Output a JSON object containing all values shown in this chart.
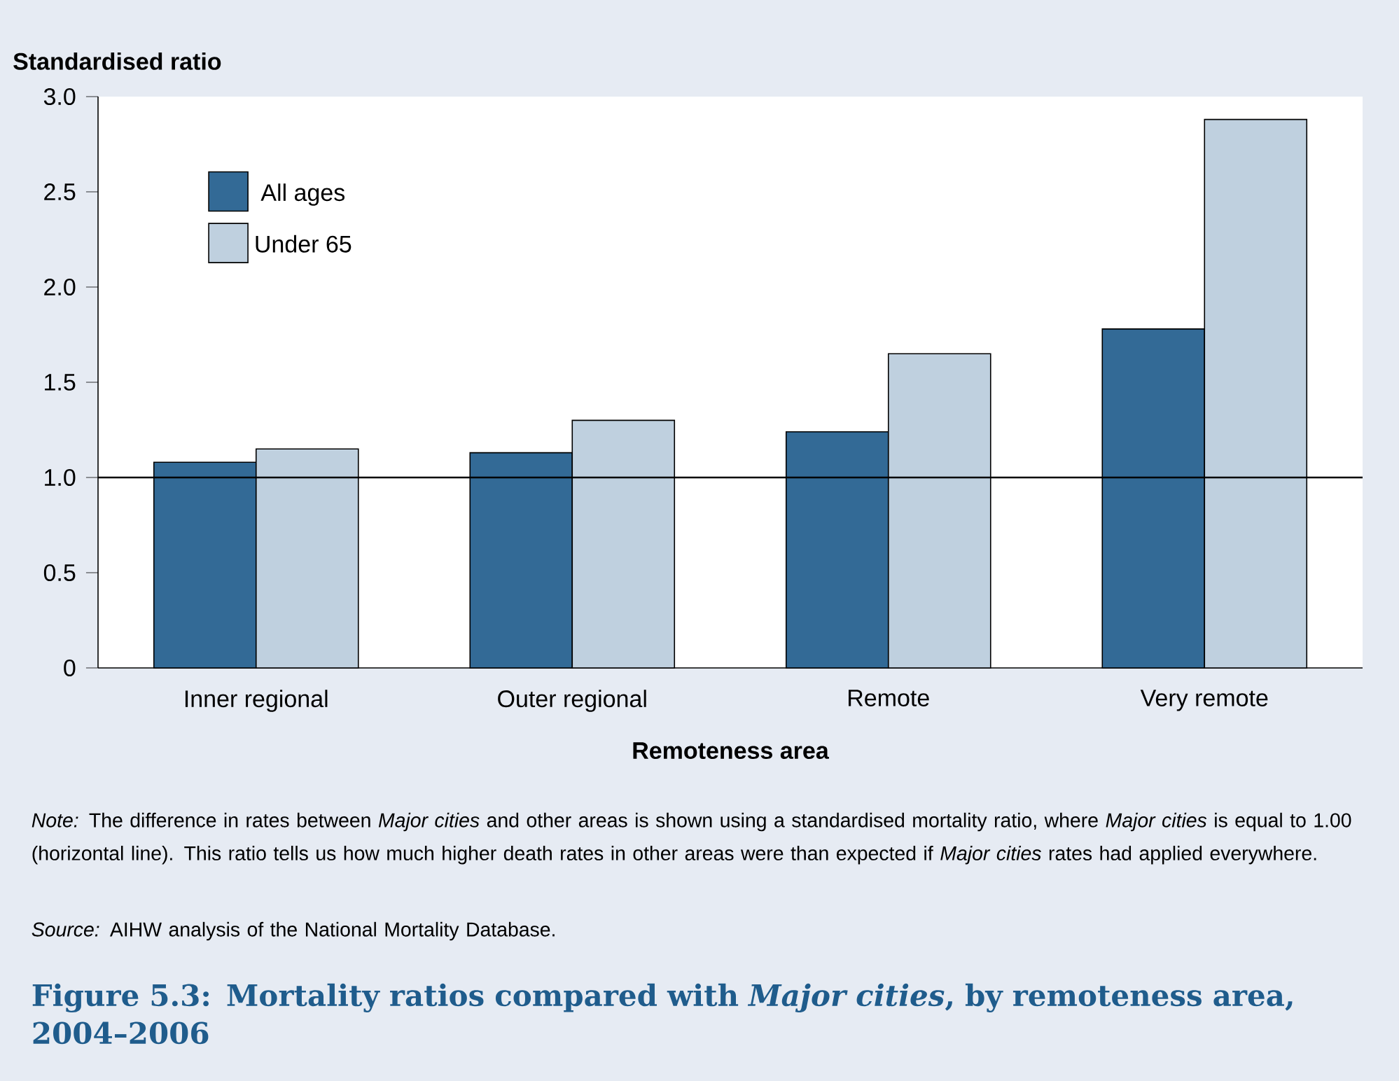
{
  "chart_data": {
    "type": "bar",
    "title": "Figure 5.3: Mortality ratios compared with *Major cities*, by remoteness area, 2004–2006",
    "xlabel": "Remoteness area",
    "ylabel": "Standardised ratio",
    "categories": [
      "Inner regional",
      "Outer regional",
      "Remote",
      "Very remote"
    ],
    "series": [
      {
        "name": "All ages",
        "color": "#336a96",
        "values": [
          1.08,
          1.13,
          1.24,
          1.78
        ]
      },
      {
        "name": "Under 65",
        "color": "#bfd0df",
        "values": [
          1.15,
          1.3,
          1.65,
          2.88
        ]
      }
    ],
    "ylim": [
      0,
      3.0
    ],
    "yticks": [
      0,
      0.5,
      {
        "value": 1.0,
        "label": "1.0"
      },
      1.5,
      {
        "value": 2.0,
        "label": "2.0"
      },
      2.5,
      {
        "value": 3.0,
        "label": "3.0"
      }
    ],
    "ref_lines": [
      {
        "axis": "y",
        "value": 1.0,
        "color": "#000000"
      }
    ],
    "legend": "top left",
    "grid": false,
    "annotations": [
      "*Note:* The difference in rates between *Major cities* and other areas is shown using a standardised mortality ratio, where *Major cities* is equal to 1.00 (horizontal line). This ratio tells us how much higher death rates in other areas were than expected if *Major cities* rates had applied everywhere.",
      "*Source:* AIHW analysis of the National Mortality Database."
    ]
  }
}
